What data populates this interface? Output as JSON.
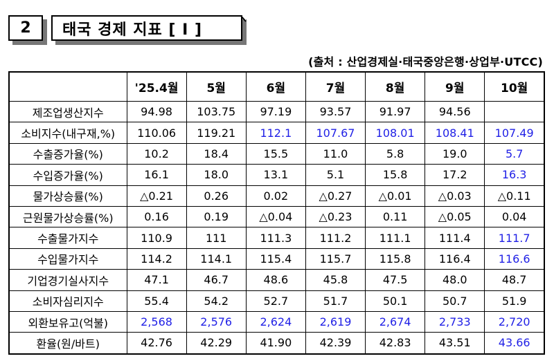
{
  "header": {
    "section_number": "2",
    "title": "태국 경제 지표 [ I ]",
    "source": "(출처 : 산업경제실·태국중앙은행·상업부·UTCC)"
  },
  "table": {
    "columns": [
      "",
      "'25.4월",
      "5월",
      "6월",
      "7월",
      "8월",
      "9월",
      "10월"
    ],
    "rows": [
      {
        "label": "제조업생산지수",
        "values": [
          "94.98",
          "103.75",
          "97.19",
          "93.57",
          "91.97",
          "94.56",
          ""
        ],
        "blue": []
      },
      {
        "label": "소비지수(내구재,%)",
        "values": [
          "110.06",
          "119.21",
          "112.1",
          "107.67",
          "108.01",
          "108.41",
          "107.49"
        ],
        "blue": [
          2,
          3,
          4,
          5,
          6
        ]
      },
      {
        "label": "수출증가율(%)",
        "values": [
          "10.2",
          "18.4",
          "15.5",
          "11.0",
          "5.8",
          "19.0",
          "5.7"
        ],
        "blue": [
          6
        ]
      },
      {
        "label": "수입증가율(%)",
        "values": [
          "16.1",
          "18.0",
          "13.1",
          "5.1",
          "15.8",
          "17.2",
          "16.3"
        ],
        "blue": [
          6
        ]
      },
      {
        "label": "물가상승률(%)",
        "values": [
          "△0.21",
          "0.26",
          "0.02",
          "△0.27",
          "△0.01",
          "△0.03",
          "△0.11"
        ],
        "blue": []
      },
      {
        "label": "근원물가상승률(%)",
        "values": [
          "0.16",
          "0.19",
          "△0.04",
          "△0.23",
          "0.11",
          "△0.05",
          "0.04"
        ],
        "blue": []
      },
      {
        "label": "수출물가지수",
        "values": [
          "110.9",
          "111",
          "111.3",
          "111.2",
          "111.1",
          "111.4",
          "111.7"
        ],
        "blue": [
          6
        ]
      },
      {
        "label": "수입물가지수",
        "values": [
          "114.2",
          "114.1",
          "115.4",
          "115.7",
          "115.8",
          "116.4",
          "116.6"
        ],
        "blue": [
          6
        ]
      },
      {
        "label": "기업경기실사지수",
        "values": [
          "47.1",
          "46.7",
          "48.6",
          "45.8",
          "47.5",
          "48.0",
          "48.7"
        ],
        "blue": []
      },
      {
        "label": "소비자심리지수",
        "values": [
          "55.4",
          "54.2",
          "52.7",
          "51.7",
          "50.1",
          "50.7",
          "51.9"
        ],
        "blue": []
      },
      {
        "label": "외환보유고(억불)",
        "values": [
          "2,568",
          "2,576",
          "2,624",
          "2,619",
          "2,674",
          "2,733",
          "2,720"
        ],
        "blue": [
          0,
          1,
          2,
          3,
          4,
          5,
          6
        ]
      },
      {
        "label": "환율(원/바트)",
        "values": [
          "42.76",
          "42.29",
          "41.90",
          "42.39",
          "42.83",
          "43.51",
          "43.66"
        ],
        "blue": [
          6
        ]
      }
    ]
  },
  "colors": {
    "blue_text": "#1f1fe6",
    "shadow": "#777777"
  }
}
